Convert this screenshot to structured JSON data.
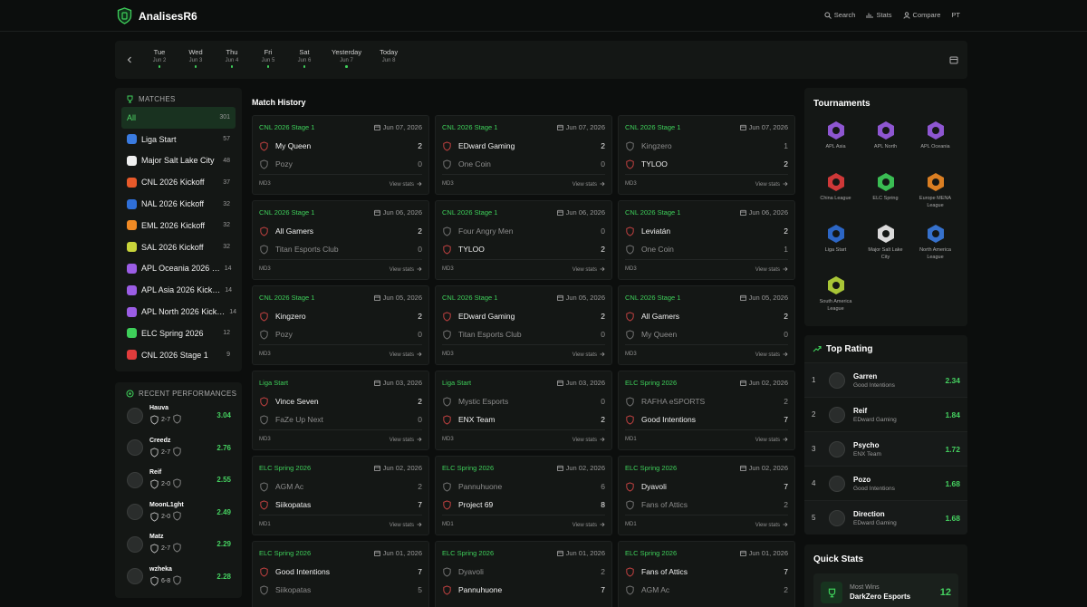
{
  "header": {
    "brand": "AnalisesR6",
    "nav": [
      "Search",
      "Stats",
      "Compare",
      "PT"
    ]
  },
  "date_bar": {
    "days": [
      {
        "day": "Tue",
        "date": "Jun 2",
        "has_matches": true
      },
      {
        "day": "Wed",
        "date": "Jun 3",
        "has_matches": true
      },
      {
        "day": "Thu",
        "date": "Jun 4",
        "has_matches": true
      },
      {
        "day": "Fri",
        "date": "Jun 5",
        "has_matches": true
      },
      {
        "day": "Sat",
        "date": "Jun 6",
        "has_matches": true
      },
      {
        "day": "Yesterday",
        "date": "Jun 7",
        "has_matches": true
      },
      {
        "day": "Today",
        "date": "Jun 8",
        "has_matches": false
      }
    ]
  },
  "matches_panel": {
    "title": "MATCHES",
    "items": [
      {
        "name": "All",
        "count": 301,
        "selected": true
      },
      {
        "name": "Liga Start",
        "count": 57
      },
      {
        "name": "Major Salt Lake City",
        "count": 48
      },
      {
        "name": "CNL 2026 Kickoff",
        "count": 37
      },
      {
        "name": "NAL 2026 Kickoff",
        "count": 32
      },
      {
        "name": "EML 2026 Kickoff",
        "count": 32
      },
      {
        "name": "SAL 2026 Kickoff",
        "count": 32
      },
      {
        "name": "APL Oceania 2026 …",
        "count": 14
      },
      {
        "name": "APL Asia 2026 Kick…",
        "count": 14
      },
      {
        "name": "APL North 2026 Kick…",
        "count": 14
      },
      {
        "name": "ELC Spring 2026",
        "count": 12
      },
      {
        "name": "CNL 2026 Stage 1",
        "count": 9
      }
    ]
  },
  "recent_performances": {
    "title": "RECENT PERFORMANCES",
    "players": [
      {
        "name": "Hauva",
        "record": "2-7",
        "rating": 3.04
      },
      {
        "name": "Creedz",
        "record": "2-7",
        "rating": 2.76
      },
      {
        "name": "Reif",
        "record": "2-0",
        "rating": 2.55
      },
      {
        "name": "MoonL1ght",
        "record": "2-0",
        "rating": 2.49
      },
      {
        "name": "Matz",
        "record": "2-7",
        "rating": 2.29
      },
      {
        "name": "wzheka",
        "record": "6-8",
        "rating": 2.28
      }
    ]
  },
  "match_history": {
    "title": "Match History",
    "link_label": "View stats",
    "matches": [
      {
        "event": "CNL 2026 Stage 1",
        "date": "Jun 07, 2026",
        "teams": [
          {
            "name": "My Queen",
            "score": 2
          },
          {
            "name": "Pozy",
            "score": 0
          }
        ],
        "format": "MD3"
      },
      {
        "event": "CNL 2026 Stage 1",
        "date": "Jun 07, 2026",
        "teams": [
          {
            "name": "EDward Gaming",
            "score": 2
          },
          {
            "name": "One Coin",
            "score": 0
          }
        ],
        "format": "MD3"
      },
      {
        "event": "CNL 2026 Stage 1",
        "date": "Jun 07, 2026",
        "teams": [
          {
            "name": "Kingzero",
            "score": 1
          },
          {
            "name": "TYLOO",
            "score": 2
          }
        ],
        "format": "MD3"
      },
      {
        "event": "CNL 2026 Stage 1",
        "date": "Jun 06, 2026",
        "teams": [
          {
            "name": "All Gamers",
            "score": 2
          },
          {
            "name": "Titan Esports Club",
            "score": 0
          }
        ],
        "format": "MD3"
      },
      {
        "event": "CNL 2026 Stage 1",
        "date": "Jun 06, 2026",
        "teams": [
          {
            "name": "Four Angry Men",
            "score": 0
          },
          {
            "name": "TYLOO",
            "score": 2
          }
        ],
        "format": "MD3"
      },
      {
        "event": "CNL 2026 Stage 1",
        "date": "Jun 06, 2026",
        "teams": [
          {
            "name": "Leviatán",
            "score": 2
          },
          {
            "name": "One Coin",
            "score": 1
          }
        ],
        "format": "MD3"
      },
      {
        "event": "CNL 2026 Stage 1",
        "date": "Jun 05, 2026",
        "teams": [
          {
            "name": "Kingzero",
            "score": 2
          },
          {
            "name": "Pozy",
            "score": 0
          }
        ],
        "format": "MD3"
      },
      {
        "event": "CNL 2026 Stage 1",
        "date": "Jun 05, 2026",
        "teams": [
          {
            "name": "EDward Gaming",
            "score": 2
          },
          {
            "name": "Titan Esports Club",
            "score": 0
          }
        ],
        "format": "MD3"
      },
      {
        "event": "CNL 2026 Stage 1",
        "date": "Jun 05, 2026",
        "teams": [
          {
            "name": "All Gamers",
            "score": 2
          },
          {
            "name": "My Queen",
            "score": 0
          }
        ],
        "format": "MD3"
      },
      {
        "event": "Liga Start",
        "date": "Jun 03, 2026",
        "teams": [
          {
            "name": "Vince Seven",
            "score": 2
          },
          {
            "name": "FaZe Up Next",
            "score": 0
          }
        ],
        "format": "MD3"
      },
      {
        "event": "Liga Start",
        "date": "Jun 03, 2026",
        "teams": [
          {
            "name": "Mystic Esports",
            "score": 0
          },
          {
            "name": "ENX Team",
            "score": 2
          }
        ],
        "format": "MD3"
      },
      {
        "event": "ELC Spring 2026",
        "date": "Jun 02, 2026",
        "teams": [
          {
            "name": "RAFHA eSPORTS",
            "score": 2
          },
          {
            "name": "Good Intentions",
            "score": 7
          }
        ],
        "format": "MD1"
      },
      {
        "event": "ELC Spring 2026",
        "date": "Jun 02, 2026",
        "teams": [
          {
            "name": "AGM Ac",
            "score": 2
          },
          {
            "name": "Siikopatas",
            "score": 7
          }
        ],
        "format": "MD1"
      },
      {
        "event": "ELC Spring 2026",
        "date": "Jun 02, 2026",
        "teams": [
          {
            "name": "Pannuhuone",
            "score": 6
          },
          {
            "name": "Project 69",
            "score": 8
          }
        ],
        "format": "MD1"
      },
      {
        "event": "ELC Spring 2026",
        "date": "Jun 02, 2026",
        "teams": [
          {
            "name": "Dyavoli",
            "score": 7
          },
          {
            "name": "Fans of Attics",
            "score": 2
          }
        ],
        "format": "MD1"
      },
      {
        "event": "ELC Spring 2026",
        "date": "Jun 01, 2026",
        "teams": [
          {
            "name": "Good Intentions",
            "score": 7
          },
          {
            "name": "Siikopatas",
            "score": 5
          }
        ]
      },
      {
        "event": "ELC Spring 2026",
        "date": "Jun 01, 2026",
        "teams": [
          {
            "name": "Dyavoli",
            "score": 2
          },
          {
            "name": "Pannuhuone",
            "score": 7
          }
        ]
      },
      {
        "event": "ELC Spring 2026",
        "date": "Jun 01, 2026",
        "teams": [
          {
            "name": "Fans of Attics",
            "score": 7
          },
          {
            "name": "AGM Ac",
            "score": 2
          }
        ]
      }
    ]
  },
  "tournaments": {
    "title": "Tournaments",
    "items": [
      "APL Asia",
      "APL North",
      "APL Oceania",
      "China League",
      "ELC Spring",
      "Europe MENA League",
      "Liga Start",
      "Major Salt Lake City",
      "North America League",
      "South America League"
    ]
  },
  "top_rating": {
    "title": "Top Rating",
    "players": [
      {
        "rank": 1,
        "name": "Garren",
        "team": "Good Intentions",
        "rating": 2.34
      },
      {
        "rank": 2,
        "name": "Reif",
        "team": "EDward Gaming",
        "rating": 1.84
      },
      {
        "rank": 3,
        "name": "Psycho",
        "team": "ENX Team",
        "rating": 1.72
      },
      {
        "rank": 4,
        "name": "Pozo",
        "team": "Good Intentions",
        "rating": 1.68
      },
      {
        "rank": 5,
        "name": "Direction",
        "team": "EDward Gaming",
        "rating": 1.68
      }
    ]
  },
  "quick_stats": {
    "title": "Quick Stats",
    "items": [
      {
        "label": "Most Wins",
        "team": "DarkZero Esports",
        "value": 12
      }
    ]
  }
}
